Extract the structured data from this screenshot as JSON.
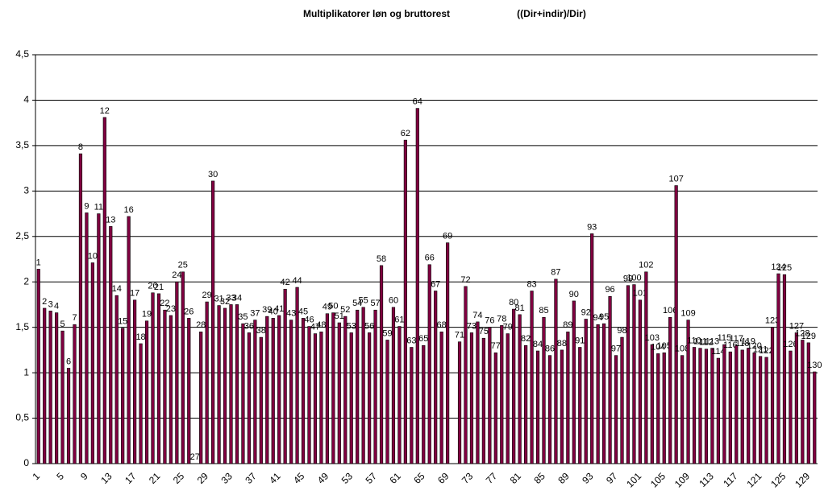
{
  "chart_data": {
    "type": "bar",
    "title": "Multiplikatorer løn og bruttorest",
    "subtitle": "((Dir+indir)/Dir)",
    "categories": [
      1,
      2,
      3,
      4,
      5,
      6,
      7,
      8,
      9,
      10,
      11,
      12,
      13,
      14,
      15,
      16,
      17,
      18,
      19,
      20,
      21,
      22,
      23,
      24,
      25,
      26,
      27,
      28,
      29,
      30,
      31,
      32,
      33,
      34,
      35,
      36,
      37,
      38,
      39,
      40,
      41,
      42,
      43,
      44,
      45,
      46,
      47,
      48,
      49,
      50,
      51,
      52,
      53,
      54,
      55,
      56,
      57,
      58,
      59,
      60,
      61,
      62,
      63,
      64,
      65,
      66,
      67,
      68,
      69,
      null,
      71,
      72,
      73,
      74,
      75,
      76,
      77,
      78,
      79,
      80,
      81,
      82,
      83,
      84,
      85,
      86,
      87,
      88,
      89,
      90,
      91,
      92,
      93,
      94,
      95,
      96,
      97,
      98,
      99,
      100,
      101,
      102,
      103,
      104,
      105,
      106,
      107,
      108,
      109,
      110,
      111,
      112,
      113,
      114,
      115,
      116,
      117,
      118,
      119,
      120,
      121,
      122,
      123,
      124,
      125,
      126,
      127,
      128,
      129,
      130
    ],
    "values": [
      2.14,
      1.71,
      1.68,
      1.66,
      1.46,
      1.05,
      1.53,
      3.41,
      2.76,
      2.21,
      2.75,
      3.81,
      2.61,
      1.85,
      1.49,
      2.72,
      1.8,
      1.32,
      1.57,
      1.88,
      1.87,
      1.69,
      1.63,
      2.0,
      2.11,
      1.6,
      0,
      1.45,
      1.78,
      3.11,
      1.74,
      1.71,
      1.75,
      1.75,
      1.54,
      1.44,
      1.58,
      1.39,
      1.62,
      1.6,
      1.63,
      1.92,
      1.58,
      1.94,
      1.6,
      1.51,
      1.43,
      1.45,
      1.65,
      1.66,
      1.55,
      1.62,
      1.44,
      1.69,
      1.72,
      1.44,
      1.69,
      2.18,
      1.36,
      1.72,
      1.51,
      3.56,
      1.28,
      3.91,
      1.3,
      2.19,
      1.9,
      1.45,
      2.43,
      null,
      1.34,
      1.95,
      1.44,
      1.56,
      1.38,
      1.5,
      1.22,
      1.52,
      1.43,
      1.7,
      1.64,
      1.3,
      1.9,
      1.24,
      1.61,
      1.19,
      2.03,
      1.25,
      1.45,
      1.79,
      1.28,
      1.59,
      2.53,
      1.53,
      1.54,
      1.84,
      1.19,
      1.39,
      1.96,
      1.97,
      1.8,
      2.11,
      1.31,
      1.21,
      1.22,
      1.61,
      3.06,
      1.19,
      1.58,
      1.28,
      1.27,
      1.26,
      1.27,
      1.16,
      1.31,
      1.23,
      1.3,
      1.25,
      1.27,
      1.22,
      1.18,
      1.17,
      1.5,
      2.09,
      2.08,
      1.24,
      1.44,
      1.36,
      1.33,
      1.01
    ],
    "color": "#800040",
    "ylim": [
      0,
      4.5
    ],
    "yticks": [
      0,
      {
        "value": 0.5,
        "label": "0,5"
      },
      1,
      {
        "value": 1.5,
        "label": "1,5"
      },
      2,
      {
        "value": 2.5,
        "label": "2,5"
      },
      3,
      {
        "value": 3.5,
        "label": "3,5"
      },
      4,
      {
        "value": 4.5,
        "label": "4,5"
      }
    ],
    "grid": true
  }
}
